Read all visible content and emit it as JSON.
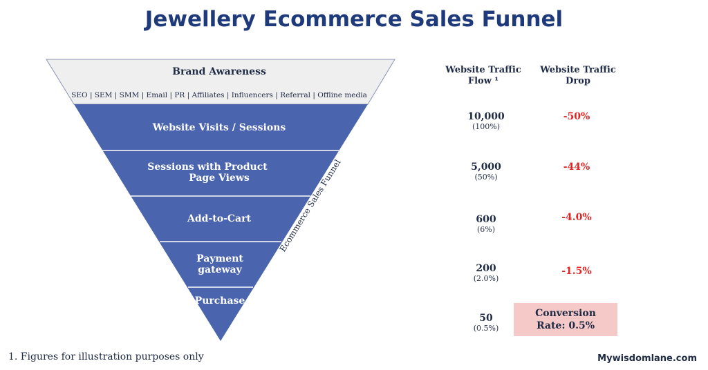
{
  "title": "Jewellery Ecommerce Sales Funnel",
  "funnel": {
    "side_label": "Ecommerce Sales Funnel",
    "top": {
      "label": "Brand Awareness",
      "sub": "SEO | SEM | SMM | Email | PR | Affiliates | Influencers | Referral | Offline media"
    },
    "stages": [
      {
        "line1": "Website Visits / Sessions",
        "line2": ""
      },
      {
        "line1": "Sessions with Product",
        "line2": "Page Views"
      },
      {
        "line1": "Add-to-Cart",
        "line2": ""
      },
      {
        "line1": "Payment",
        "line2": "gateway"
      },
      {
        "line1": "Purchase",
        "line2": ""
      }
    ],
    "colors": {
      "top_fill": "#efefef",
      "stage_fill": "#4a64ad",
      "divider": "#ffffff"
    }
  },
  "columns": {
    "flow_header_line1": "Website Traffic",
    "flow_header_line2": "Flow ¹",
    "drop_header_line1": "Website Traffic",
    "drop_header_line2": "Drop"
  },
  "rows": [
    {
      "value": "10,000",
      "percent": "(100%)",
      "drop": "-50%"
    },
    {
      "value": "5,000",
      "percent": "(50%)",
      "drop": "-44%"
    },
    {
      "value": "600",
      "percent": "(6%)",
      "drop": "-4.0%"
    },
    {
      "value": "200",
      "percent": "(2.0%)",
      "drop": "-1.5%"
    },
    {
      "value": "50",
      "percent": "(0.5%)",
      "drop": ""
    }
  ],
  "conversion": {
    "line1": "Conversion",
    "line2": "Rate: 0.5%"
  },
  "footnote": "1. Figures for illustration purposes only",
  "brand": "Mywisdomlane.com"
}
